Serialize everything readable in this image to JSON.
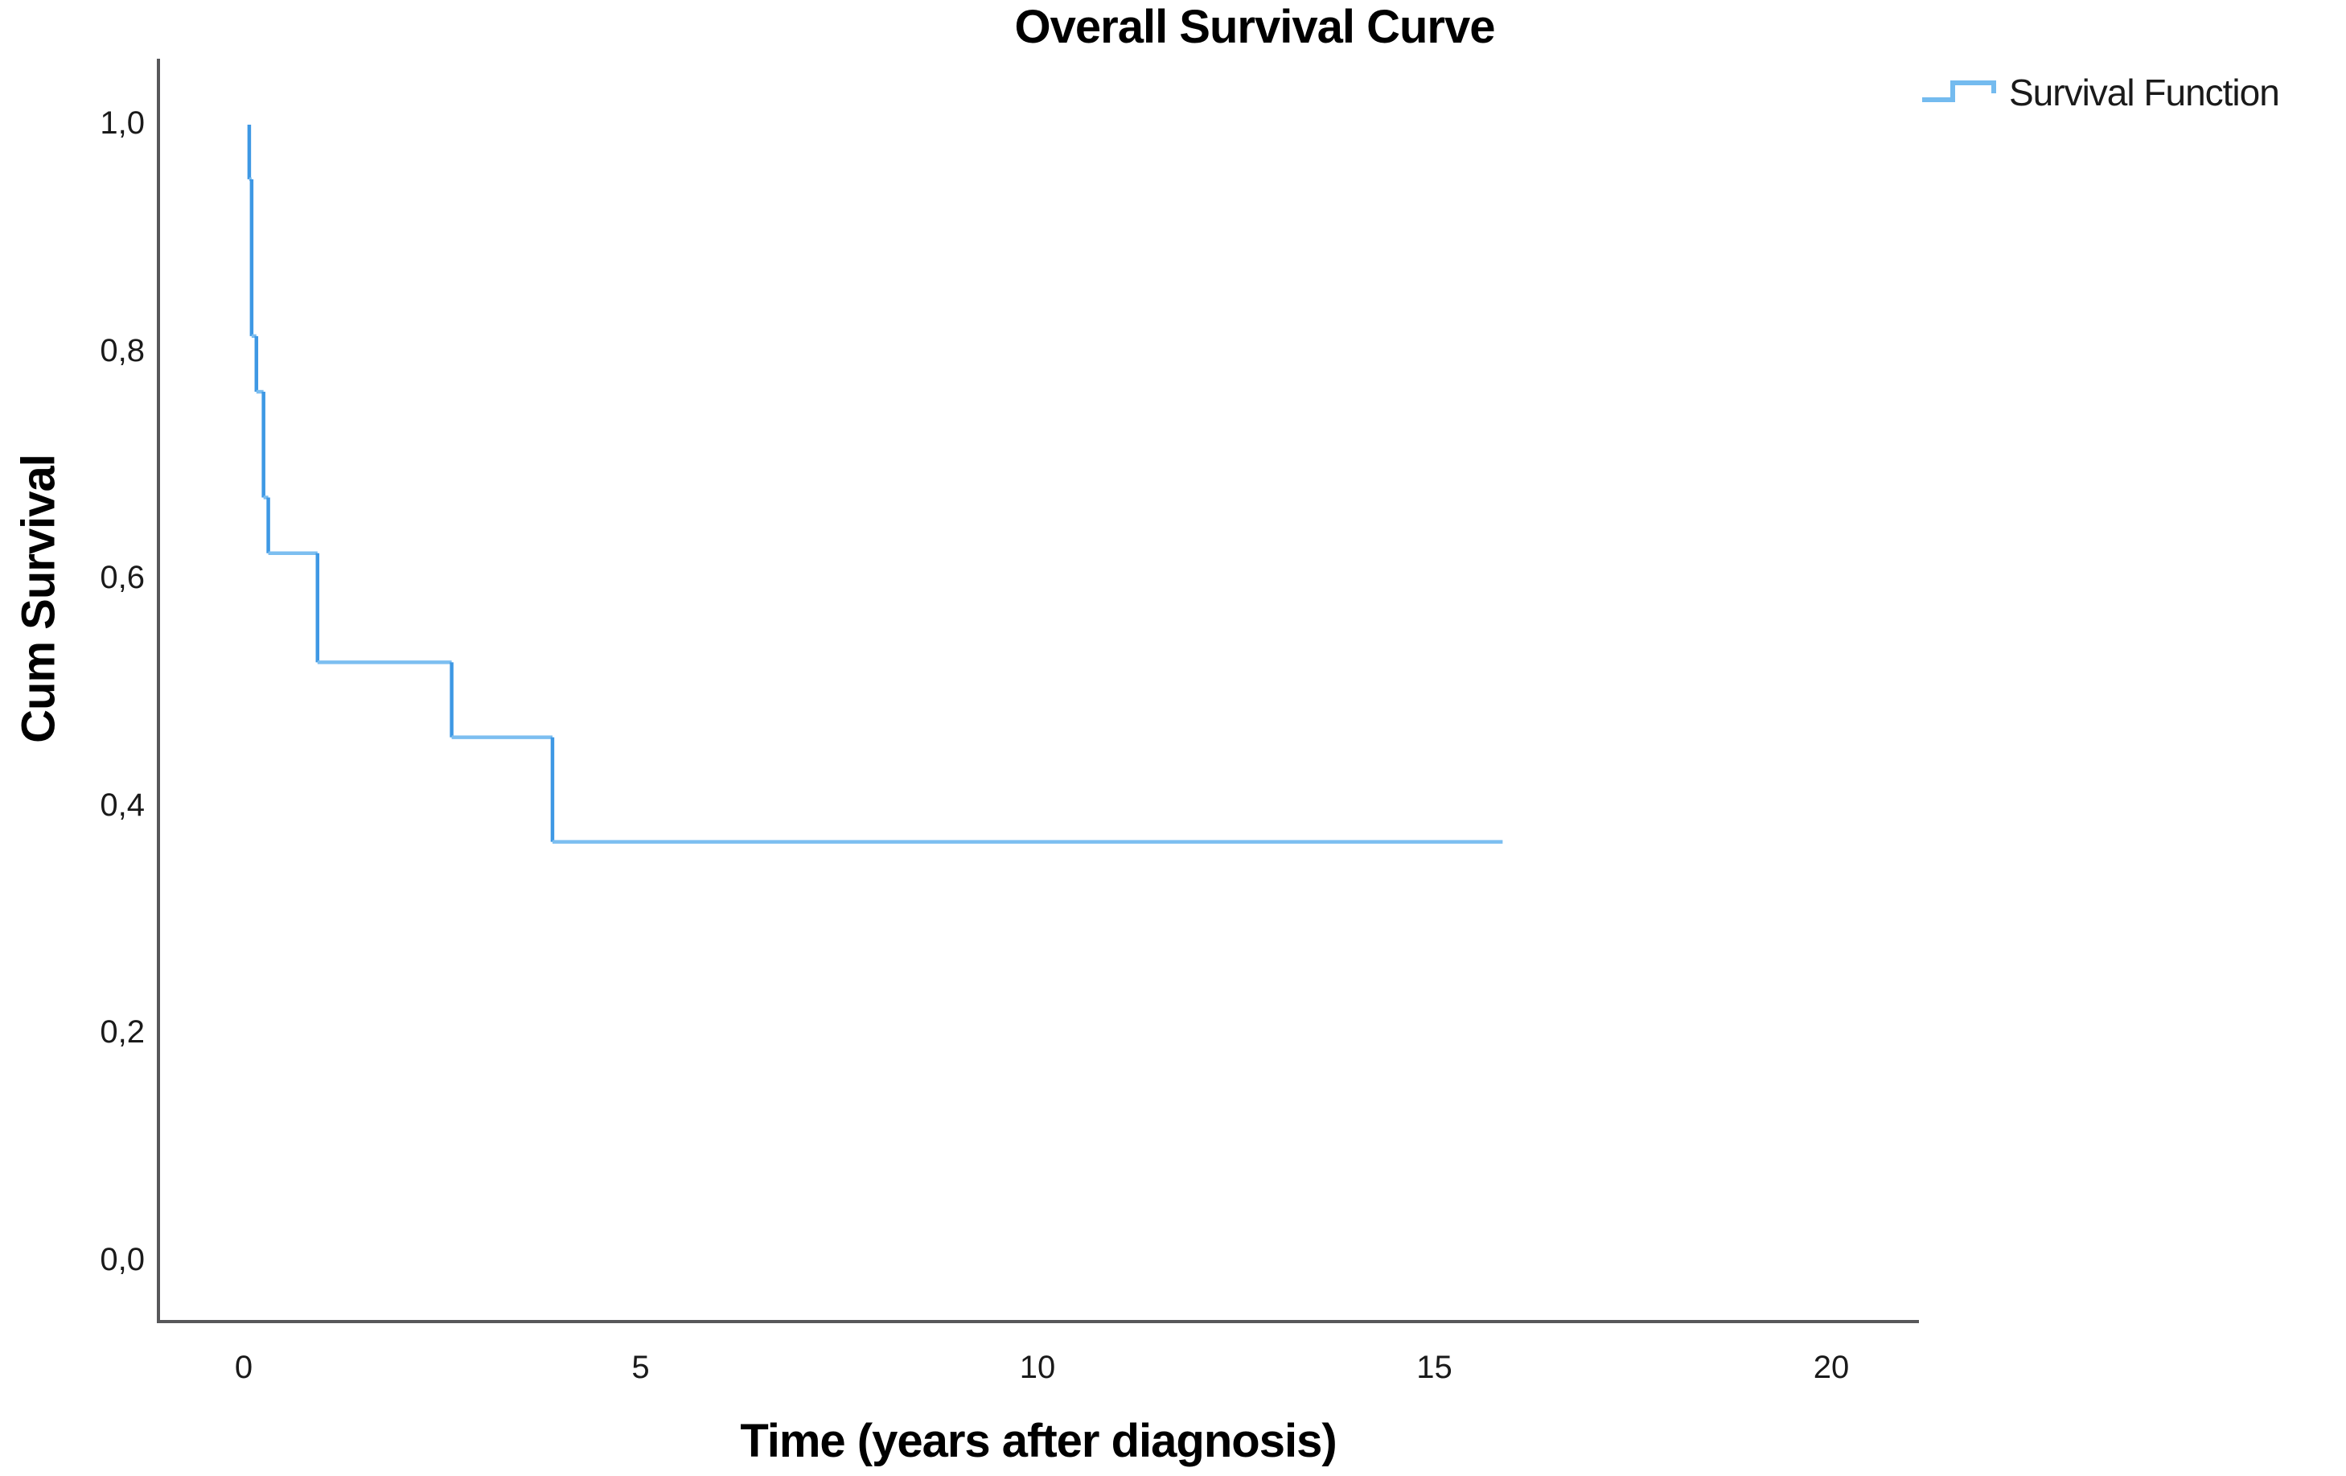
{
  "title": "Overall Survival Curve",
  "legend": {
    "label": "Survival Function"
  },
  "axes": {
    "x": {
      "title": "Time (years after diagnosis)",
      "ticks": [
        {
          "label": "0",
          "value": 0
        },
        {
          "label": "5",
          "value": 5
        },
        {
          "label": "10",
          "value": 10
        },
        {
          "label": "15",
          "value": 15
        },
        {
          "label": "20",
          "value": 20
        }
      ]
    },
    "y": {
      "title": "Cum Survival",
      "ticks": [
        {
          "label": "1,0",
          "value": 1.0
        },
        {
          "label": "0,8",
          "value": 0.8
        },
        {
          "label": "0,6",
          "value": 0.6
        },
        {
          "label": "0,4",
          "value": 0.4
        },
        {
          "label": "0,2",
          "value": 0.2
        },
        {
          "label": "0,0",
          "value": 0.0
        }
      ]
    }
  },
  "colors": {
    "curve_vertical": "#3E98E4",
    "curve_horizontal": "#7CBEF0",
    "legend_line": "#74BBEF",
    "axis_line": "#58585a",
    "text": "#1a1a1a"
  },
  "chart_data": {
    "type": "line",
    "subtype": "kaplan-meier-step",
    "title": "Overall Survival Curve",
    "xlabel": "Time (years after diagnosis)",
    "ylabel": "Cum Survival",
    "xlim": [
      -1.1,
      21.1
    ],
    "ylim": [
      -0.03,
      1.06
    ],
    "x_ticks": [
      0,
      5,
      10,
      15,
      20
    ],
    "y_ticks": [
      1.0,
      0.8,
      0.6,
      0.4,
      0.2,
      0.0
    ],
    "y_tick_labels": [
      "1,0",
      "0,8",
      "0,6",
      "0,4",
      "0,2",
      "0,0"
    ],
    "grid": false,
    "legend_position": "top-right",
    "series": [
      {
        "name": "Survival Function",
        "step": true,
        "points": [
          [
            0.07,
            1.0
          ],
          [
            0.07,
            0.952
          ],
          [
            0.1,
            0.952
          ],
          [
            0.1,
            0.814
          ],
          [
            0.16,
            0.814
          ],
          [
            0.16,
            0.765
          ],
          [
            0.25,
            0.765
          ],
          [
            0.25,
            0.672
          ],
          [
            0.31,
            0.672
          ],
          [
            0.31,
            0.623
          ],
          [
            0.93,
            0.623
          ],
          [
            0.93,
            0.527
          ],
          [
            2.62,
            0.527
          ],
          [
            2.62,
            0.461
          ],
          [
            3.89,
            0.461
          ],
          [
            3.89,
            0.369
          ],
          [
            15.86,
            0.369
          ]
        ]
      }
    ]
  }
}
